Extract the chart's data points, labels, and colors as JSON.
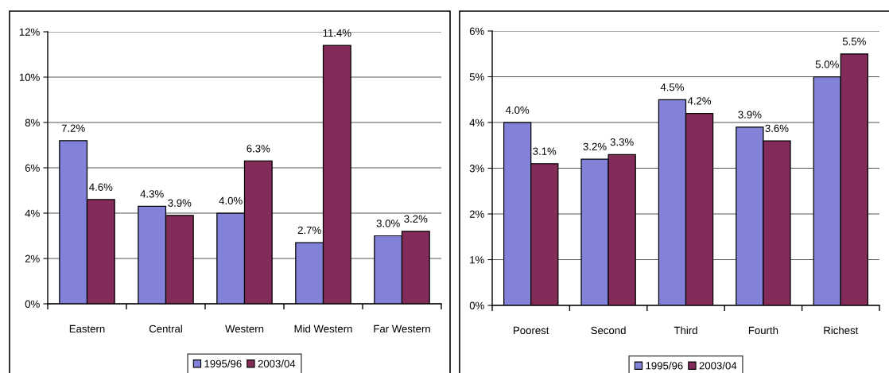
{
  "chart_data": [
    {
      "type": "bar",
      "categories": [
        "Eastern",
        "Central",
        "Western",
        "Mid Western",
        "Far Western"
      ],
      "series": [
        {
          "name": "1995/96",
          "color": "#8282d9",
          "values": [
            7.2,
            4.3,
            4.0,
            2.7,
            3.0
          ],
          "value_labels": [
            "7.2%",
            "4.3%",
            "4.0%",
            "2.7%",
            "3.0%"
          ]
        },
        {
          "name": "2003/04",
          "color": "#832c5a",
          "values": [
            4.6,
            3.9,
            6.3,
            11.4,
            3.2
          ],
          "value_labels": [
            "4.6%",
            "3.9%",
            "6.3%",
            "11.4%",
            "3.2%"
          ]
        }
      ],
      "ylim": [
        0,
        12
      ],
      "yticks": [
        {
          "value": 0,
          "label": "0%"
        },
        {
          "value": 2,
          "label": "2%"
        },
        {
          "value": 4,
          "label": "4%"
        },
        {
          "value": 6,
          "label": "6%"
        },
        {
          "value": 8,
          "label": "8%"
        },
        {
          "value": 10,
          "label": "10%"
        },
        {
          "value": 12,
          "label": "12%"
        }
      ],
      "grid": "y",
      "legend": "bottom"
    },
    {
      "type": "bar",
      "categories": [
        "Poorest",
        "Second",
        "Third",
        "Fourth",
        "Richest"
      ],
      "series": [
        {
          "name": "1995/96",
          "color": "#8282d9",
          "values": [
            4.0,
            3.2,
            4.5,
            3.9,
            5.0
          ],
          "value_labels": [
            "4.0%",
            "3.2%",
            "4.5%",
            "3.9%",
            "5.0%"
          ]
        },
        {
          "name": "2003/04",
          "color": "#832c5a",
          "values": [
            3.1,
            3.3,
            4.2,
            3.6,
            5.5
          ],
          "value_labels": [
            "3.1%",
            "3.3%",
            "4.2%",
            "3.6%",
            "5.5%"
          ]
        }
      ],
      "ylim": [
        0,
        6
      ],
      "yticks": [
        {
          "value": 0,
          "label": "0%"
        },
        {
          "value": 1,
          "label": "1%"
        },
        {
          "value": 2,
          "label": "2%"
        },
        {
          "value": 3,
          "label": "3%"
        },
        {
          "value": 4,
          "label": "4%"
        },
        {
          "value": 5,
          "label": "5%"
        },
        {
          "value": 6,
          "label": "6%"
        }
      ],
      "grid": "y",
      "legend": "bottom"
    }
  ]
}
